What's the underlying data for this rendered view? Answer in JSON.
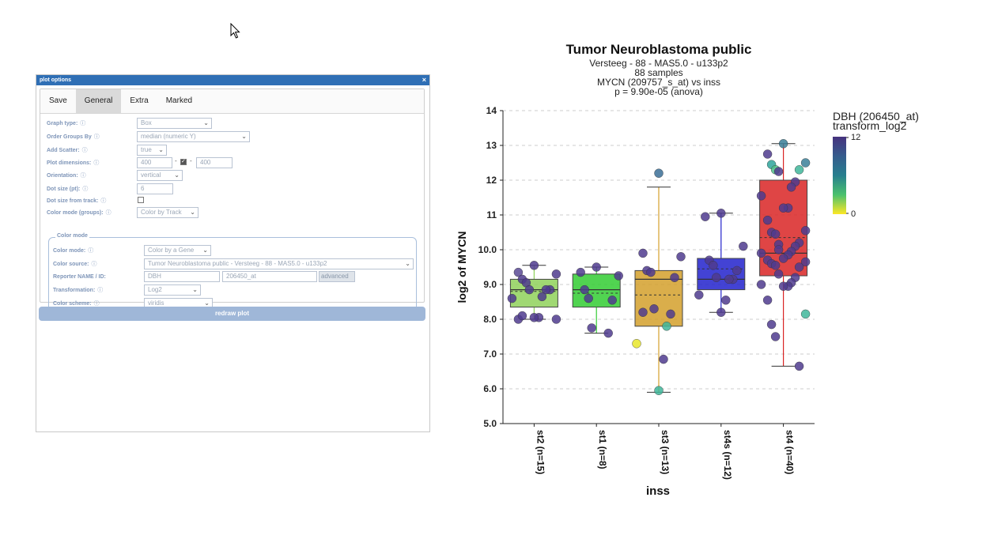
{
  "dialog": {
    "title": "plot options",
    "close": "×",
    "tabs": [
      "Save",
      "General",
      "Extra",
      "Marked"
    ],
    "active_tab": "General",
    "info_glyph": "ⓘ",
    "fields": {
      "graph_type": {
        "label": "Graph type:",
        "value": "Box"
      },
      "order_groups": {
        "label": "Order Groups By",
        "value": "median (numeric Y)"
      },
      "add_scatter": {
        "label": "Add Scatter:",
        "value": "true"
      },
      "plot_dimensions": {
        "label": "Plot dimensions:",
        "width": "400",
        "height": "400",
        "sep": "-",
        "locked": true
      },
      "orientation": {
        "label": "Orientation:",
        "value": "vertical"
      },
      "dot_size": {
        "label": "Dot size (pt):",
        "value": "6"
      },
      "dot_size_track": {
        "label": "Dot size from track:",
        "checked": false
      },
      "color_mode_groups": {
        "label": "Color mode (groups):",
        "value": "Color by Track"
      }
    },
    "color_mode_box": {
      "legend": "Color mode",
      "color_mode": {
        "label": "Color mode:",
        "value": "Color by a Gene"
      },
      "color_source": {
        "label": "Color source:",
        "value": "Tumor Neuroblastoma public - Versteeg - 88 - MAS5.0 - u133p2"
      },
      "reporter": {
        "label": "Reporter NAME / ID:",
        "name": "DBH",
        "id": "206450_at",
        "advanced": "advanced"
      },
      "transformation": {
        "label": "Transformation:",
        "value": "Log2"
      },
      "color_scheme": {
        "label": "Color scheme:",
        "value": "viridis"
      }
    },
    "redraw_label": "redraw plot"
  },
  "chart_data": {
    "type": "box",
    "title": "Tumor Neuroblastoma public",
    "subtitle_lines": [
      "Versteeg - 88 - MAS5.0 - u133p2",
      "88 samples",
      "MYCN (209757_s_at) vs inss",
      "p = 9.90e-05 (anova)"
    ],
    "xlabel": "inss",
    "ylabel": "log2 of MYCN",
    "ylim": [
      5.0,
      14
    ],
    "yticks": [
      "5.0",
      "6.0",
      "7.0",
      "8.0",
      "9.0",
      "10.0",
      "11",
      "12",
      "13",
      "14"
    ],
    "grid": true,
    "categories": [
      "st2 (n=15)",
      "st1 (n=8)",
      "st3 (n=13)",
      "st4s (n=12)",
      "st4 (n=40)"
    ],
    "colors": [
      "#8fd15a",
      "#33cc33",
      "#d4a02c",
      "#2222cc",
      "#d92424"
    ],
    "boxes": [
      {
        "min": 8.0,
        "q1": 8.35,
        "median": 8.85,
        "q3": 9.15,
        "max": 9.55,
        "mean": 8.8
      },
      {
        "min": 7.6,
        "q1": 8.35,
        "median": 8.85,
        "q3": 9.3,
        "max": 9.5,
        "mean": 8.75
      },
      {
        "min": 5.9,
        "q1": 7.8,
        "median": 9.15,
        "q3": 9.4,
        "max": 11.8,
        "mean": 8.7
      },
      {
        "min": 8.2,
        "q1": 8.85,
        "median": 9.15,
        "q3": 9.75,
        "max": 11.05,
        "mean": 9.45
      },
      {
        "min": 6.65,
        "q1": 9.25,
        "median": 9.9,
        "q3": 12.0,
        "max": 13.05,
        "mean": 10.35
      }
    ],
    "points": [
      [
        9.55,
        9.35,
        9.3,
        9.15,
        9.05,
        8.85,
        8.85,
        8.85,
        8.65,
        8.6,
        8.05,
        8.05,
        8.0,
        8.0,
        8.1
      ],
      [
        9.5,
        9.35,
        9.25,
        8.85,
        8.6,
        8.55,
        7.75,
        7.6
      ],
      [
        12.2,
        9.9,
        9.8,
        9.4,
        9.35,
        9.2,
        8.3,
        8.15,
        7.8,
        7.3,
        6.85,
        5.95,
        8.2
      ],
      [
        11.05,
        10.95,
        10.1,
        9.7,
        9.55,
        9.4,
        9.2,
        9.15,
        9.15,
        8.7,
        8.55,
        8.2
      ],
      [
        13.05,
        12.75,
        12.5,
        12.45,
        12.3,
        12.3,
        12.25,
        11.95,
        11.8,
        11.55,
        11.2,
        11.2,
        10.85,
        10.55,
        10.5,
        10.45,
        10.2,
        10.15,
        10.1,
        9.95,
        9.9,
        9.85,
        9.75,
        9.7,
        9.65,
        9.6,
        9.55,
        9.5,
        9.3,
        9.2,
        9.05,
        9.0,
        8.95,
        8.95,
        8.55,
        8.15,
        7.85,
        7.5,
        6.65,
        10.0
      ]
    ],
    "point_colors": [
      [
        "#4f3b8e",
        "#5b4a95",
        "#4f3b8e",
        "#4f3b8e",
        "#4f3b8e",
        "#4f3b8e",
        "#4f3b8e",
        "#4f3b8e",
        "#4f3b8e",
        "#4f3b8e",
        "#4f3b8e",
        "#4f3b8e",
        "#4f3b8e",
        "#4f3b8e",
        "#4f3b8e"
      ],
      [
        "#4f3b8e",
        "#4f3b8e",
        "#4f3b8e",
        "#4f3b8e",
        "#4f3b8e",
        "#4f3b8e",
        "#4f3b8e",
        "#4f3b8e"
      ],
      [
        "#3b6f96",
        "#4f3b8e",
        "#4f3b8e",
        "#4f3b8e",
        "#4f3b8e",
        "#4f3b8e",
        "#4f3b8e",
        "#4f3b8e",
        "#3fb69a",
        "#e8e62a",
        "#4f3b8e",
        "#3fb69a",
        "#4f3b8e"
      ],
      [
        "#4f3b8e",
        "#4f3b8e",
        "#4f3b8e",
        "#4f3b8e",
        "#4f3b8e",
        "#4f3b8e",
        "#4f3b8e",
        "#4f3b8e",
        "#4f3b8e",
        "#4f3b8e",
        "#4f3b8e",
        "#4f3b8e"
      ],
      [
        "#3b7f98",
        "#4f3b8e",
        "#3b7f98",
        "#2ea59b",
        "#4fbf88",
        "#3fb69a",
        "#4f3b8e",
        "#4f3b8e",
        "#4f3b8e",
        "#4f3b8e",
        "#4f3b8e",
        "#4f3b8e",
        "#4f3b8e",
        "#4f3b8e",
        "#4f3b8e",
        "#4f3b8e",
        "#4f3b8e",
        "#4f3b8e",
        "#4f3b8e",
        "#4f3b8e",
        "#4f3b8e",
        "#4f3b8e",
        "#4f3b8e",
        "#4f3b8e",
        "#4f3b8e",
        "#4f3b8e",
        "#4f3b8e",
        "#4f3b8e",
        "#4f3b8e",
        "#4f3b8e",
        "#4f3b8e",
        "#4f3b8e",
        "#4f3b8e",
        "#4f3b8e",
        "#4f3b8e",
        "#3fb69a",
        "#4f3b8e",
        "#4f3b8e",
        "#4f3b8e",
        "#4f3b8e"
      ]
    ],
    "legend": {
      "title_lines": [
        "DBH (206450_at)",
        "transform_log2"
      ],
      "max_label": "12",
      "min_label": "0",
      "placement": "right"
    }
  }
}
